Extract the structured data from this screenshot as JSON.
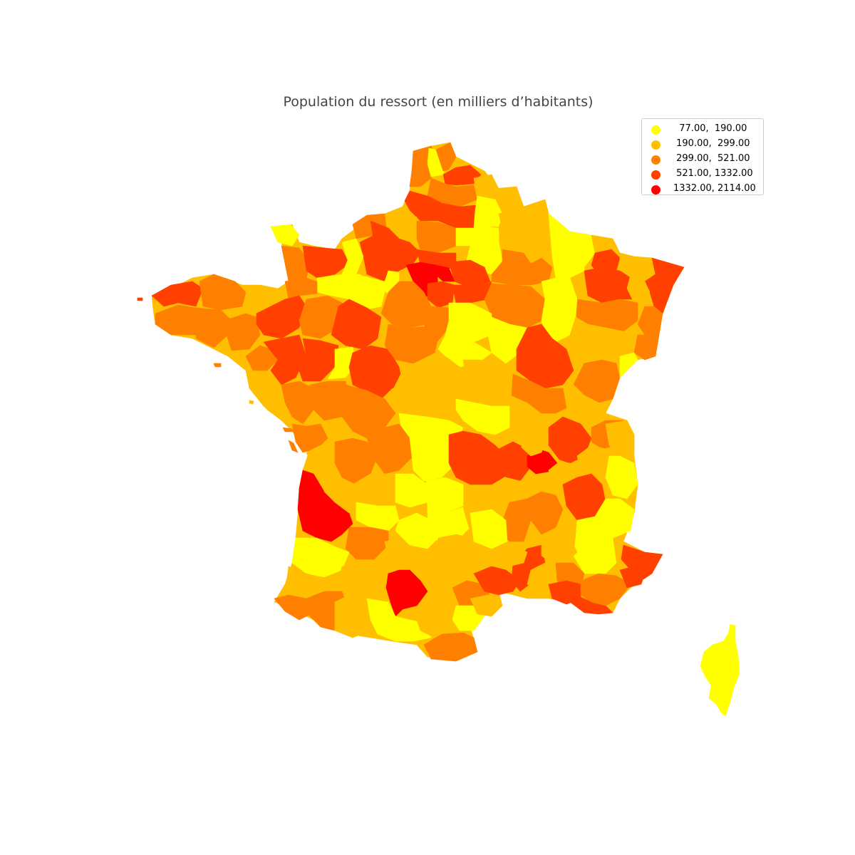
{
  "title": "Population du ressort (en milliers d’habitants)",
  "colors": {
    "c1": "#ffff00",
    "c2": "#ffbf00",
    "c3": "#ff8000",
    "c4": "#ff4000",
    "c5": "#ff0000"
  },
  "legend": [
    {
      "label": "  77.00,  190.00",
      "color": "#ffff00"
    },
    {
      "label": " 190.00,  299.00",
      "color": "#ffbf00"
    },
    {
      "label": " 299.00,  521.00",
      "color": "#ff8000"
    },
    {
      "label": " 521.00, 1332.00",
      "color": "#ff4000"
    },
    {
      "label": "1332.00, 2114.00",
      "color": "#ff0000"
    }
  ]
}
